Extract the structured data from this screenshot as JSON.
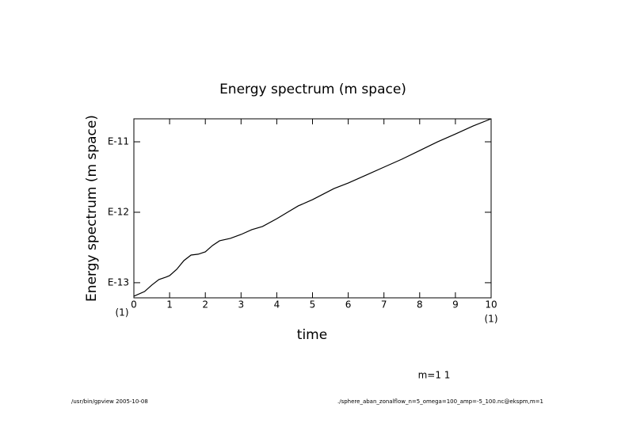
{
  "chart_data": {
    "type": "line",
    "title": "Energy spectrum (m space)",
    "x_label": "time",
    "y_label": "Energy spectrum (m space)",
    "x_scale_labels": [
      "(1)",
      "(1)"
    ],
    "annotation": "m=1 1",
    "footer_left": "/usr/bin/gpview  2005-10-08",
    "footer_right": "./sphere_aban_zonalflow_n=5_omega=100_amp=-5_100.nc@ekspm,m=1",
    "log_y": true,
    "xlim": [
      0,
      10
    ],
    "xticks": [
      0,
      1,
      2,
      3,
      4,
      5,
      6,
      7,
      8,
      9,
      10
    ],
    "ylim": [
      6.1e-14,
      2.12e-11
    ],
    "yticks": [
      {
        "value": 1e-13,
        "label": "E-13"
      },
      {
        "value": 1e-12,
        "label": "E-12"
      },
      {
        "value": 1e-11,
        "label": "E-11"
      }
    ],
    "x": [
      0,
      0.3,
      0.5,
      0.7,
      0.9,
      1.0,
      1.2,
      1.4,
      1.6,
      1.8,
      2.0,
      2.2,
      2.4,
      2.7,
      3.0,
      3.3,
      3.6,
      4.0,
      4.3,
      4.6,
      5.0,
      5.3,
      5.6,
      6.0,
      6.5,
      7.0,
      7.5,
      8.0,
      8.5,
      9.0,
      9.5,
      10
    ],
    "series": [
      {
        "color": "#000000",
        "values": [
          6.44e-14,
          7.5e-14,
          9.25e-14,
          1.11e-13,
          1.2e-13,
          1.26e-13,
          1.55e-13,
          2.06e-13,
          2.47e-13,
          2.54e-13,
          2.74e-13,
          3.37e-13,
          3.94e-13,
          4.26e-13,
          4.84e-13,
          5.66e-13,
          6.28e-13,
          8.1e-13,
          1e-12,
          1.23e-12,
          1.51e-12,
          1.81e-12,
          2.17e-12,
          2.6e-12,
          3.37e-12,
          4.37e-12,
          5.66e-12,
          7.52e-12,
          1e-11,
          1.29e-11,
          1.68e-11,
          2.12e-11
        ]
      }
    ]
  }
}
